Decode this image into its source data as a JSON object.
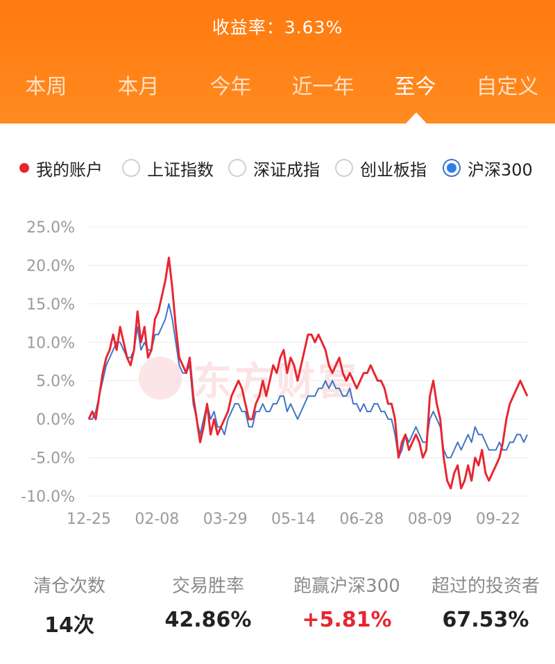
{
  "header": {
    "return_rate": "收益率：3.63%",
    "tabs": [
      {
        "label": "本周",
        "active": false
      },
      {
        "label": "本月",
        "active": false
      },
      {
        "label": "今年",
        "active": false
      },
      {
        "label": "近一年",
        "active": false
      },
      {
        "label": "至今",
        "active": true
      },
      {
        "label": "自定义",
        "active": false
      }
    ]
  },
  "legend": {
    "items": [
      {
        "label": "我的账户",
        "state": "dot"
      },
      {
        "label": "上证指数",
        "state": "off"
      },
      {
        "label": "深证成指",
        "state": "off"
      },
      {
        "label": "创业板指",
        "state": "off"
      },
      {
        "label": "沪深300",
        "state": "on"
      }
    ]
  },
  "watermark": {
    "text": "东方财富"
  },
  "colors": {
    "header": "#ff7a0f",
    "account_line": "#e8262f",
    "index_line": "#3e74c6"
  },
  "chart_data": {
    "type": "line",
    "ylim": [
      -10,
      25
    ],
    "yticks": [
      "25.0%",
      "20.0%",
      "15.0%",
      "10.0%",
      "5.0%",
      "0.0%",
      "-5.0%",
      "-10.0%"
    ],
    "ytick_values": [
      25,
      20,
      15,
      10,
      5,
      0,
      -5,
      -10
    ],
    "xticks": [
      "12-25",
      "02-08",
      "03-29",
      "05-14",
      "06-28",
      "08-09",
      "09-22"
    ],
    "grid": true,
    "series": [
      {
        "name": "我的账户",
        "color": "#e8262f",
        "values": [
          0,
          1,
          0,
          3,
          6,
          8,
          9,
          11,
          9,
          12,
          10,
          8,
          7,
          9,
          14,
          10,
          12,
          8,
          9,
          13,
          14,
          16,
          18,
          21,
          17,
          12,
          8,
          7,
          6,
          8,
          3,
          0,
          -3,
          -1,
          2,
          -2,
          0,
          -2,
          -1,
          0,
          1,
          3,
          4,
          5,
          4,
          2,
          0,
          0,
          2,
          3,
          5,
          3,
          5,
          7,
          6,
          8,
          9,
          6,
          8,
          7,
          5,
          7,
          9,
          11,
          11,
          10,
          11,
          10,
          9,
          7,
          6,
          7,
          8,
          6,
          5,
          6,
          5,
          4,
          5,
          6,
          6,
          7,
          6,
          5,
          5,
          4,
          2,
          2,
          0,
          -5,
          -3,
          -2,
          -4,
          -3,
          -2,
          -3,
          -5,
          -4,
          3,
          5,
          2,
          0,
          -5,
          -8,
          -9,
          -7,
          -6,
          -9,
          -8,
          -6,
          -8,
          -5,
          -6,
          -4,
          -7,
          -8,
          -7,
          -6,
          -5,
          -3,
          0,
          2,
          3,
          4,
          5,
          4,
          3
        ],
        "final_value": 3.63
      },
      {
        "name": "沪深300",
        "color": "#3e74c6",
        "values": [
          0,
          0,
          1,
          3,
          5,
          7,
          8,
          9,
          10,
          10,
          9,
          8,
          8,
          9,
          12,
          9,
          10,
          9,
          9,
          11,
          11,
          12,
          13,
          15,
          13,
          10,
          7,
          6,
          6,
          7,
          2,
          0,
          -2,
          0,
          2,
          0,
          1,
          -1,
          -1,
          -2,
          0,
          1,
          2,
          2,
          1,
          1,
          -1,
          -1,
          1,
          1,
          2,
          1,
          1,
          2,
          2,
          3,
          3,
          1,
          2,
          1,
          0,
          1,
          2,
          3,
          3,
          3,
          4,
          4,
          5,
          4,
          5,
          4,
          4,
          3,
          3,
          4,
          2,
          2,
          1,
          2,
          1,
          1,
          2,
          2,
          1,
          1,
          0,
          0,
          -2,
          -5,
          -4,
          -2,
          -3,
          -2,
          -1,
          -2,
          -3,
          -3,
          0,
          1,
          0,
          -1,
          -4,
          -5,
          -5,
          -4,
          -3,
          -4,
          -3,
          -2,
          -3,
          -1,
          -2,
          -2,
          -3,
          -4,
          -4,
          -4,
          -3,
          -4,
          -4,
          -3,
          -3,
          -2,
          -2,
          -3,
          -2
        ],
        "final_value": -2.2
      }
    ]
  },
  "stats": [
    {
      "label": "清仓次数",
      "value": "14次",
      "highlight": false
    },
    {
      "label": "交易胜率",
      "value": "42.86%",
      "highlight": false
    },
    {
      "label": "跑赢沪深300",
      "value": "+5.81%",
      "highlight": true
    },
    {
      "label": "超过的投资者",
      "value": "67.53%",
      "highlight": false
    }
  ]
}
